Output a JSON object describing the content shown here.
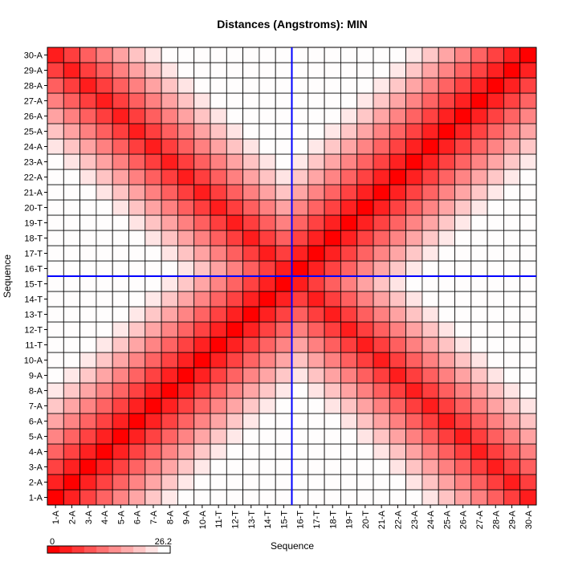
{
  "chart_data": {
    "type": "heatmap",
    "title": "Distances (Angstroms):  MIN",
    "xlabel": "Sequence",
    "ylabel": "Sequence",
    "labels": [
      "1-A",
      "2-A",
      "3-A",
      "4-A",
      "5-A",
      "6-A",
      "7-A",
      "8-A",
      "9-A",
      "10-A",
      "11-T",
      "12-T",
      "13-T",
      "14-T",
      "15-T",
      "16-T",
      "17-T",
      "18-T",
      "19-T",
      "20-T",
      "21-A",
      "22-A",
      "23-A",
      "24-A",
      "25-A",
      "26-A",
      "27-A",
      "28-A",
      "29-A",
      "30-A"
    ],
    "color_scale": {
      "min": 0,
      "max": 26.2,
      "min_label": "0",
      "max_label": "26.2",
      "low_color": "#ff0000",
      "high_color": "#ffffff"
    },
    "crosshair": {
      "x": "16-T",
      "y": "16-T",
      "color": "#0000ff"
    },
    "grid": true,
    "colorbar_position": "bottom-left"
  }
}
